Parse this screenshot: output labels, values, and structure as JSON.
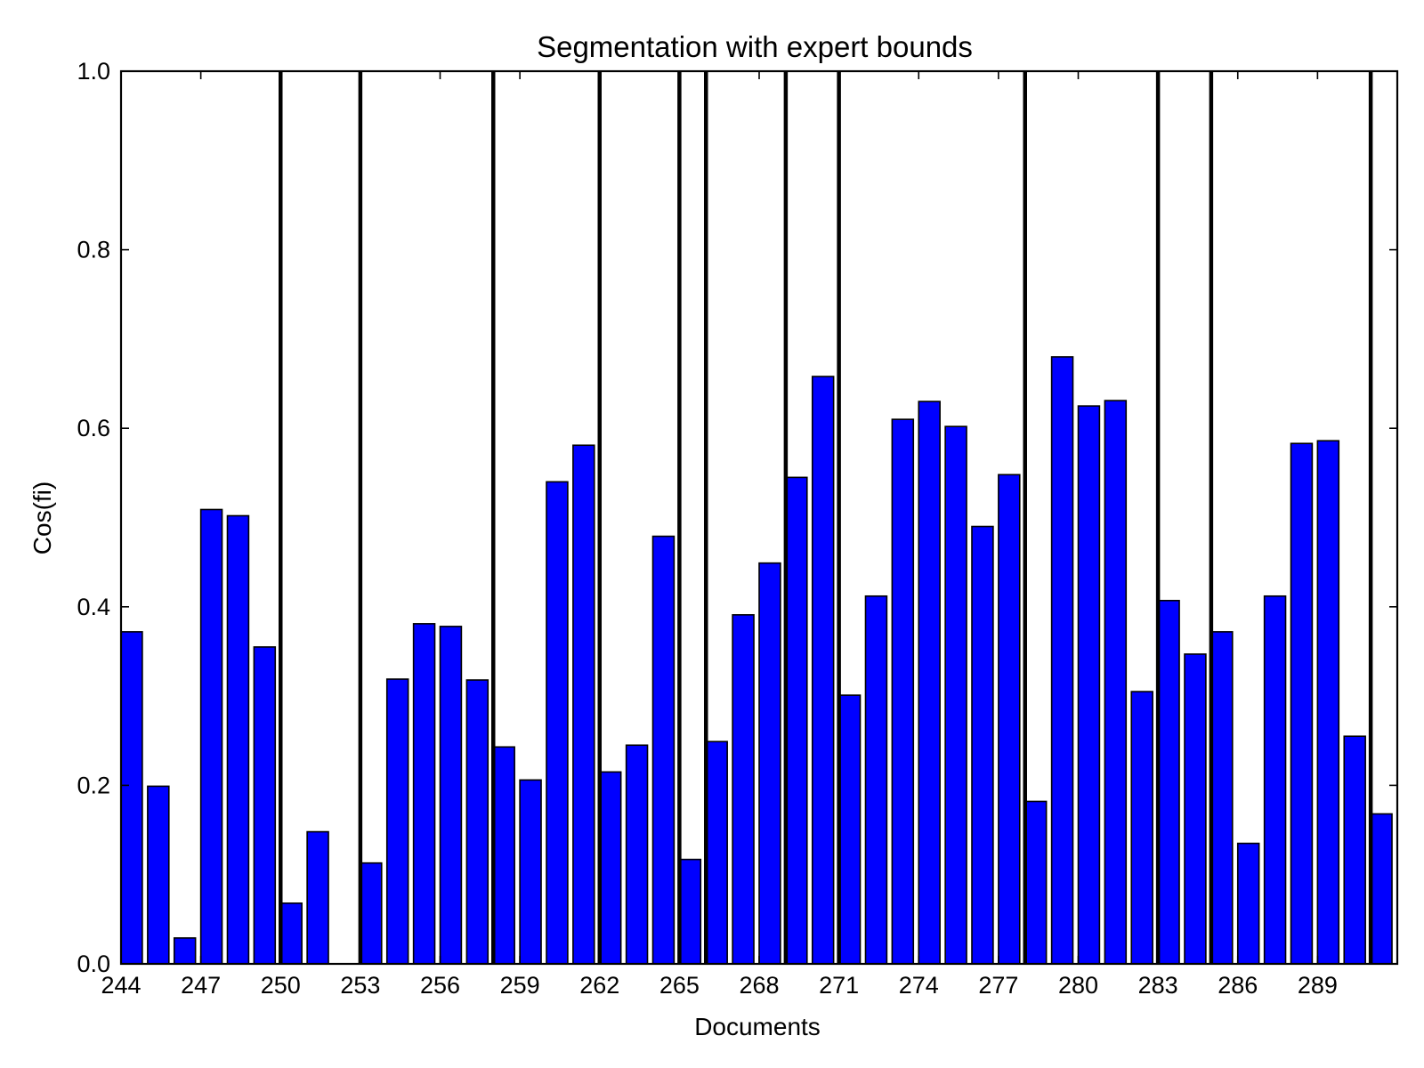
{
  "chart_data": {
    "type": "bar",
    "title": "Segmentation with expert bounds",
    "xlabel": "Documents",
    "ylabel": "Cos(fi)",
    "ylim": [
      0.0,
      1.0
    ],
    "xlim": [
      244,
      292
    ],
    "yticks": [
      "0.0",
      "0.2",
      "0.4",
      "0.6",
      "0.8",
      "1.0"
    ],
    "xticks": [
      "244",
      "247",
      "250",
      "253",
      "256",
      "259",
      "262",
      "265",
      "268",
      "271",
      "274",
      "277",
      "280",
      "283",
      "286",
      "289"
    ],
    "x": [
      244,
      245,
      246,
      247,
      248,
      249,
      250,
      251,
      252,
      253,
      254,
      255,
      256,
      257,
      258,
      259,
      260,
      261,
      262,
      263,
      264,
      265,
      266,
      267,
      268,
      269,
      270,
      271,
      272,
      273,
      274,
      275,
      276,
      277,
      278,
      279,
      280,
      281,
      282,
      283,
      284,
      285,
      286,
      287,
      288,
      289,
      290,
      291
    ],
    "values": [
      0.372,
      0.199,
      0.029,
      0.509,
      0.502,
      0.355,
      0.068,
      0.148,
      0.0,
      0.113,
      0.319,
      0.381,
      0.378,
      0.318,
      0.243,
      0.206,
      0.54,
      0.581,
      0.215,
      0.245,
      0.479,
      0.117,
      0.249,
      0.391,
      0.449,
      0.545,
      0.658,
      0.301,
      0.412,
      0.61,
      0.63,
      0.602,
      0.49,
      0.548,
      0.182,
      0.68,
      0.625,
      0.631,
      0.305,
      0.407,
      0.347,
      0.372,
      0.135,
      0.412,
      0.583,
      0.586,
      0.255,
      0.168
    ],
    "bounds": [
      250,
      253,
      258,
      262,
      265,
      266,
      269,
      271,
      278,
      283,
      285,
      291
    ],
    "bar_color": "#0000ff",
    "bound_color": "#000000",
    "grid": false,
    "legend": "none"
  }
}
